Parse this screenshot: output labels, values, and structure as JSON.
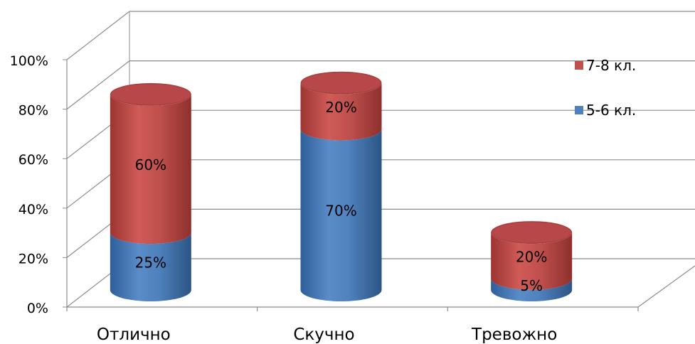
{
  "chart_data": {
    "type": "bar",
    "subtype": "stacked-3d-cylinder-percent",
    "categories": [
      "Отлично",
      "Скучно",
      "Тревожно"
    ],
    "series": [
      {
        "name": "5-6 кл.",
        "values": [
          25,
          70,
          5
        ],
        "labels": [
          "25%",
          "70%",
          "5%"
        ],
        "color": "#4f81bd"
      },
      {
        "name": "7-8 кл.",
        "values": [
          60,
          20,
          20
        ],
        "labels": [
          "60%",
          "20%",
          "20%"
        ],
        "color": "#c0504d"
      }
    ],
    "y_ticks": [
      "0%",
      "20%",
      "40%",
      "60%",
      "80%",
      "100%"
    ],
    "ylim": [
      0,
      100
    ],
    "grid": true,
    "legend_position": "right",
    "legend_order": [
      "7-8 кл.",
      "5-6 кл."
    ]
  }
}
